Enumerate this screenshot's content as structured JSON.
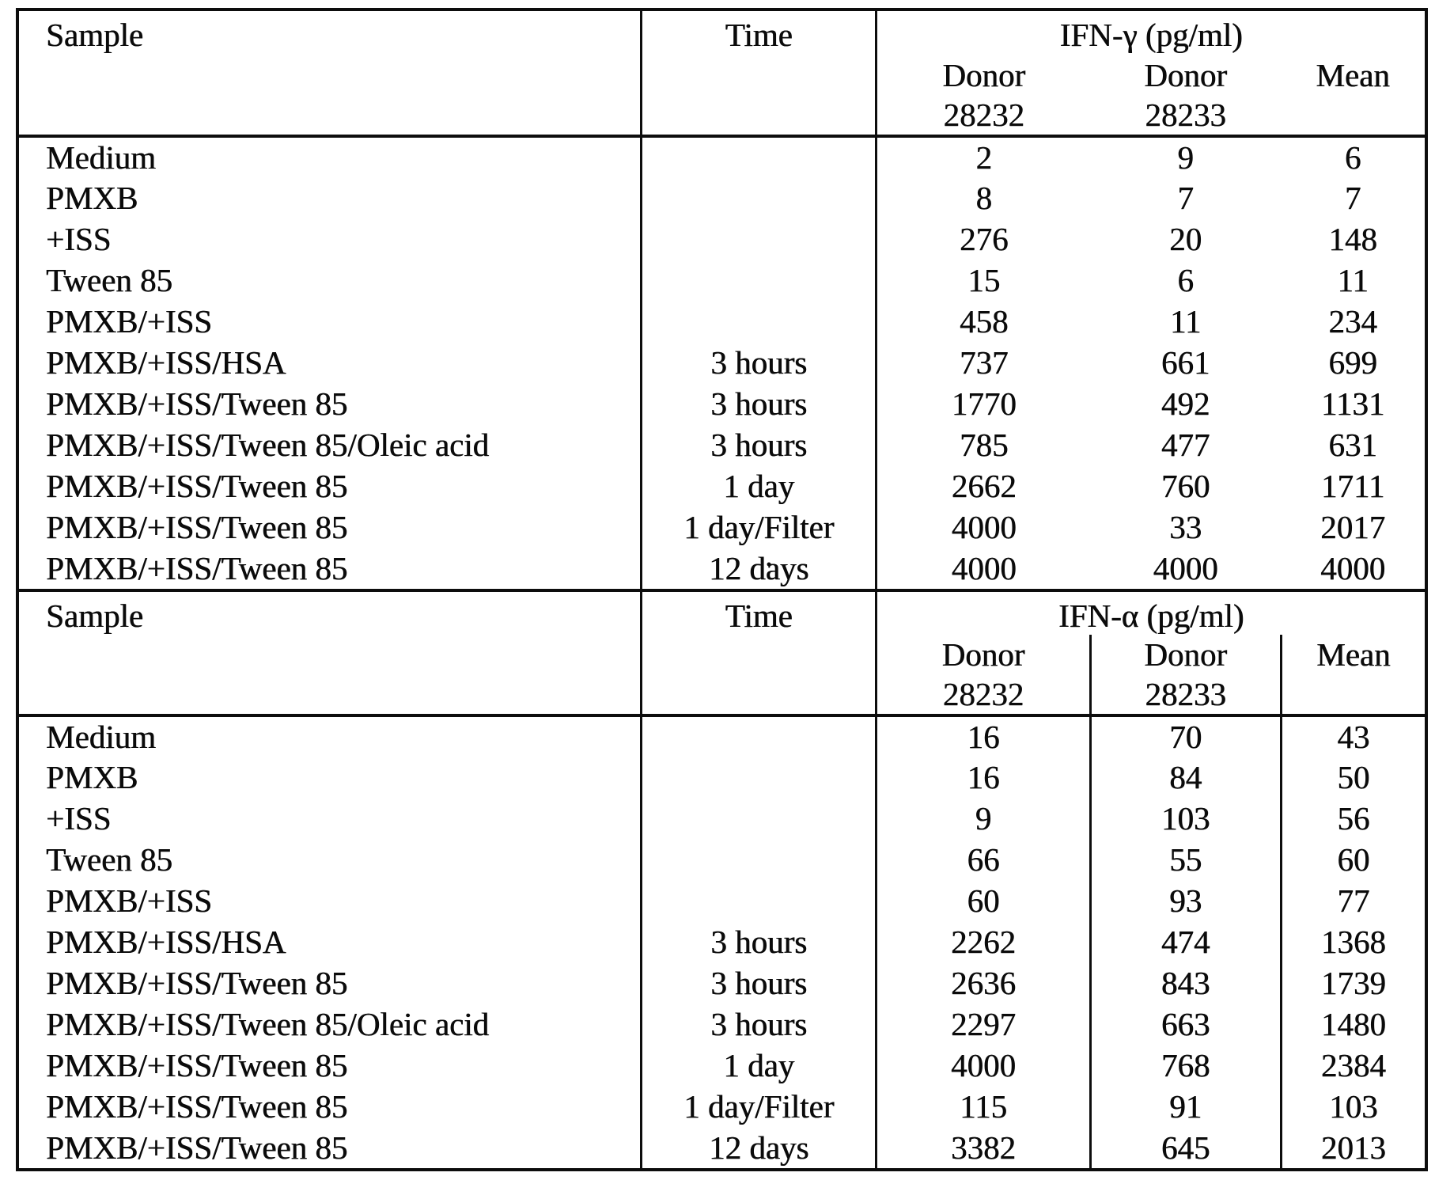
{
  "document": {
    "background": "#ffffff",
    "ink_color": "#0d0d0d"
  },
  "artifacts": {
    "stray_dot": "·"
  },
  "tables": [
    {
      "sample_header": "Sample",
      "time_header": "Time",
      "assay_header": "IFN-γ (pg/ml)",
      "subheaders": {
        "donor1_label": "Donor",
        "donor1_id": "28232",
        "donor2_label": "Donor",
        "donor2_id": "28233",
        "mean_label": "Mean"
      },
      "rows": [
        {
          "sample": "Medium",
          "time": "",
          "donor_28232": "2",
          "donor_28233": "9",
          "mean": "6"
        },
        {
          "sample": "PMXB",
          "time": "",
          "donor_28232": "8",
          "donor_28233": "7",
          "mean": "7"
        },
        {
          "sample": "+ISS",
          "time": "",
          "donor_28232": "276",
          "donor_28233": "20",
          "mean": "148"
        },
        {
          "sample": "Tween 85",
          "time": "",
          "donor_28232": "15",
          "donor_28233": "6",
          "mean": "11"
        },
        {
          "sample": "PMXB/+ISS",
          "time": "",
          "donor_28232": "458",
          "donor_28233": "11",
          "mean": "234"
        },
        {
          "sample": "PMXB/+ISS/HSA",
          "time": "3 hours",
          "donor_28232": "737",
          "donor_28233": "661",
          "mean": "699"
        },
        {
          "sample": "PMXB/+ISS/Tween 85",
          "time": "3 hours",
          "donor_28232": "1770",
          "donor_28233": "492",
          "mean": "1131"
        },
        {
          "sample": "PMXB/+ISS/Tween 85/Oleic acid",
          "time": "3 hours",
          "donor_28232": "785",
          "donor_28233": "477",
          "mean": "631"
        },
        {
          "sample": "PMXB/+ISS/Tween 85",
          "time": "1 day",
          "donor_28232": "2662",
          "donor_28233": "760",
          "mean": "1711"
        },
        {
          "sample": "PMXB/+ISS/Tween 85",
          "time": "1 day/Filter",
          "donor_28232": "4000",
          "donor_28233": "33",
          "mean": "2017"
        },
        {
          "sample": "PMXB/+ISS/Tween 85",
          "time": "12 days",
          "donor_28232": "4000",
          "donor_28233": "4000",
          "mean": "4000"
        }
      ]
    },
    {
      "sample_header": "Sample",
      "time_header": "Time",
      "assay_header": "IFN-α (pg/ml)",
      "subheaders": {
        "donor1_label": "Donor",
        "donor1_id": "28232",
        "donor2_label": "Donor",
        "donor2_id": "28233",
        "mean_label": "Mean"
      },
      "rows": [
        {
          "sample": "Medium",
          "time": "",
          "donor_28232": "16",
          "donor_28233": "70",
          "mean": "43"
        },
        {
          "sample": "PMXB",
          "time": "",
          "donor_28232": "16",
          "donor_28233": "84",
          "mean": "50"
        },
        {
          "sample": "+ISS",
          "time": "",
          "donor_28232": "9",
          "donor_28233": "103",
          "mean": "56"
        },
        {
          "sample": "Tween 85",
          "time": "",
          "donor_28232": "66",
          "donor_28233": "55",
          "mean": "60"
        },
        {
          "sample": "PMXB/+ISS",
          "time": "",
          "donor_28232": "60",
          "donor_28233": "93",
          "mean": "77"
        },
        {
          "sample": "PMXB/+ISS/HSA",
          "time": "3 hours",
          "donor_28232": "2262",
          "donor_28233": "474",
          "mean": "1368"
        },
        {
          "sample": "PMXB/+ISS/Tween 85",
          "time": "3 hours",
          "donor_28232": "2636",
          "donor_28233": "843",
          "mean": "1739"
        },
        {
          "sample": "PMXB/+ISS/Tween 85/Oleic acid",
          "time": "3 hours",
          "donor_28232": "2297",
          "donor_28233": "663",
          "mean": "1480"
        },
        {
          "sample": "PMXB/+ISS/Tween 85",
          "time": "1 day",
          "donor_28232": "4000",
          "donor_28233": "768",
          "mean": "2384"
        },
        {
          "sample": "PMXB/+ISS/Tween 85",
          "time": "1 day/Filter",
          "donor_28232": "115",
          "donor_28233": "91",
          "mean": "103"
        },
        {
          "sample": "PMXB/+ISS/Tween 85",
          "time": "12 days",
          "donor_28232": "3382",
          "donor_28233": "645",
          "mean": "2013"
        }
      ]
    }
  ]
}
